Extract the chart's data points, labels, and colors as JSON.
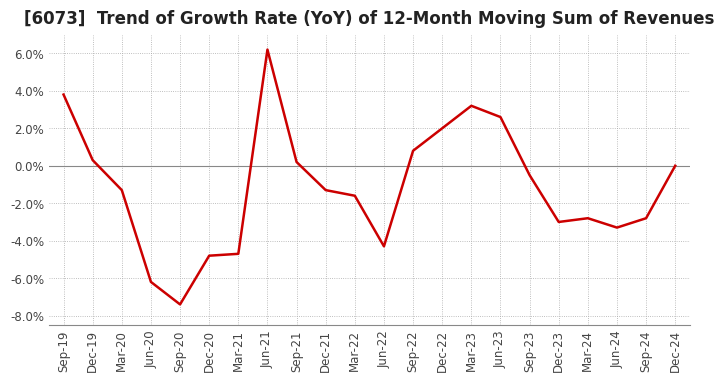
{
  "title": "[6073]  Trend of Growth Rate (YoY) of 12-Month Moving Sum of Revenues",
  "x_labels": [
    "Sep-19",
    "Dec-19",
    "Mar-20",
    "Jun-20",
    "Sep-20",
    "Dec-20",
    "Mar-21",
    "Jun-21",
    "Sep-21",
    "Dec-21",
    "Mar-22",
    "Jun-22",
    "Sep-22",
    "Dec-22",
    "Mar-23",
    "Jun-23",
    "Sep-23",
    "Dec-23",
    "Mar-24",
    "Jun-24",
    "Sep-24",
    "Dec-24"
  ],
  "y_values": [
    0.038,
    0.003,
    -0.013,
    -0.062,
    -0.074,
    -0.048,
    -0.047,
    0.062,
    0.002,
    -0.013,
    -0.016,
    -0.043,
    0.008,
    0.02,
    0.032,
    0.026,
    -0.005,
    -0.03,
    -0.028,
    -0.033,
    -0.028,
    0.0
  ],
  "line_color": "#cc0000",
  "background_color": "#ffffff",
  "grid_color": "#aaaaaa",
  "ylim": [
    -0.085,
    0.07
  ],
  "yticks": [
    -0.08,
    -0.06,
    -0.04,
    -0.02,
    0.0,
    0.02,
    0.04,
    0.06
  ],
  "title_fontsize": 12,
  "tick_fontsize": 8.5
}
